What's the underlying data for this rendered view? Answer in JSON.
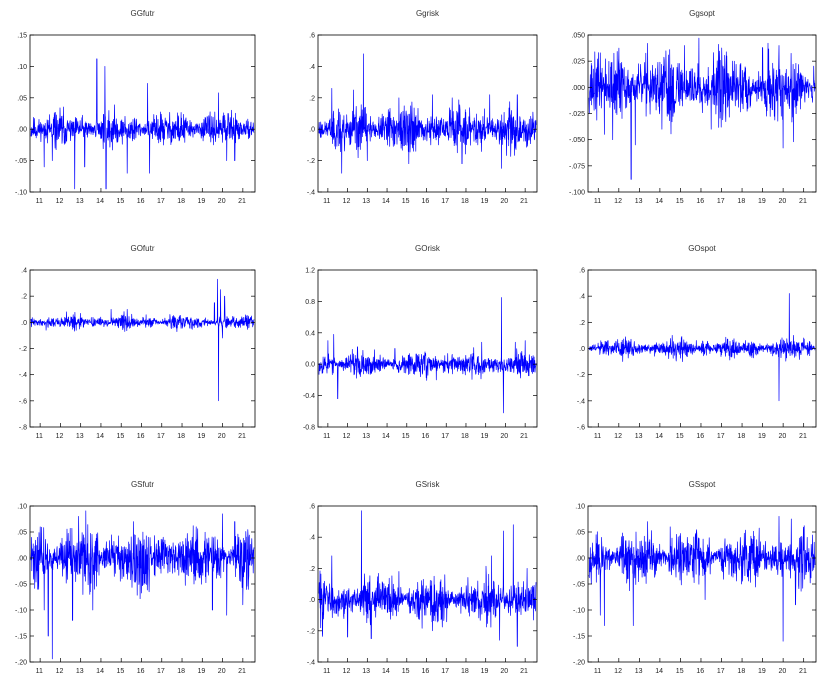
{
  "figure": {
    "line_color": "#0000ff",
    "x_tick_labels": [
      "11",
      "12",
      "13",
      "14",
      "15",
      "16",
      "17",
      "18",
      "19",
      "20",
      "21"
    ]
  },
  "chart_data": [
    {
      "type": "line",
      "title": "GGfutr",
      "xlabel": "",
      "ylabel": "",
      "xlim": [
        2010.5,
        2021.6
      ],
      "ylim": [
        -0.1,
        0.15
      ],
      "yticks": [
        -0.1,
        -0.05,
        0.0,
        0.05,
        0.1,
        0.15
      ],
      "ytick_labels": [
        "-.10",
        "-.05",
        ".00",
        ".05",
        ".10",
        ".15"
      ],
      "base_amplitude": 0.013,
      "seed": 11,
      "spikes": [
        [
          2011.2,
          -0.06
        ],
        [
          2011.6,
          -0.05
        ],
        [
          2012.7,
          -0.095
        ],
        [
          2013.2,
          -0.06
        ],
        [
          2013.8,
          0.112
        ],
        [
          2014.2,
          0.1
        ],
        [
          2014.25,
          -0.097
        ],
        [
          2015.3,
          -0.07
        ],
        [
          2016.3,
          0.073
        ],
        [
          2016.4,
          -0.07
        ],
        [
          2019.8,
          0.058
        ],
        [
          2020.2,
          -0.05
        ],
        [
          2020.6,
          -0.05
        ]
      ]
    },
    {
      "type": "line",
      "title": "Ggrisk",
      "xlabel": "",
      "ylabel": "",
      "xlim": [
        2010.5,
        2021.6
      ],
      "ylim": [
        -0.4,
        0.6
      ],
      "yticks": [
        -0.4,
        -0.2,
        0.0,
        0.2,
        0.4,
        0.6
      ],
      "ytick_labels": [
        "-.4",
        "-.2",
        ".0",
        ".2",
        ".4",
        ".6"
      ],
      "base_amplitude": 0.07,
      "seed": 23,
      "spikes": [
        [
          2011.2,
          0.26
        ],
        [
          2011.7,
          -0.28
        ],
        [
          2012.3,
          0.25
        ],
        [
          2012.8,
          0.48
        ],
        [
          2013.0,
          -0.2
        ],
        [
          2014.6,
          0.2
        ],
        [
          2015.1,
          -0.22
        ],
        [
          2016.3,
          0.22
        ],
        [
          2017.3,
          0.2
        ],
        [
          2017.8,
          -0.22
        ],
        [
          2019.2,
          0.22
        ],
        [
          2019.8,
          -0.25
        ],
        [
          2020.6,
          0.22
        ]
      ]
    },
    {
      "type": "line",
      "title": "Ggsopt",
      "xlabel": "",
      "ylabel": "",
      "xlim": [
        2010.5,
        2021.6
      ],
      "ylim": [
        -0.1,
        0.05
      ],
      "yticks": [
        -0.1,
        -0.075,
        -0.05,
        -0.025,
        0.0,
        0.025,
        0.05
      ],
      "ytick_labels": [
        "-.100",
        "-.075",
        "-.050",
        "-.025",
        ".000",
        ".025",
        ".050"
      ],
      "base_amplitude": 0.016,
      "seed": 37,
      "spikes": [
        [
          2011.1,
          0.033
        ],
        [
          2011.3,
          -0.045
        ],
        [
          2011.7,
          -0.05
        ],
        [
          2012.6,
          -0.088
        ],
        [
          2012.8,
          -0.055
        ],
        [
          2013.4,
          0.042
        ],
        [
          2014.1,
          -0.04
        ],
        [
          2015.2,
          0.04
        ],
        [
          2015.9,
          0.047
        ],
        [
          2016.5,
          -0.04
        ],
        [
          2019.0,
          0.038
        ],
        [
          2019.8,
          0.04
        ],
        [
          2020.0,
          -0.058
        ],
        [
          2020.5,
          -0.052
        ]
      ]
    },
    {
      "type": "line",
      "title": "GOfutr",
      "xlabel": "",
      "ylabel": "",
      "xlim": [
        2010.5,
        2021.6
      ],
      "ylim": [
        -0.8,
        0.4
      ],
      "yticks": [
        -0.8,
        -0.6,
        -0.4,
        -0.2,
        0.0,
        0.2,
        0.4
      ],
      "ytick_labels": [
        "-.8",
        "-.6",
        "-.4",
        "-.2",
        ".0",
        ".2",
        ".4"
      ],
      "base_amplitude": 0.025,
      "seed": 41,
      "spikes": [
        [
          2011.3,
          -0.06
        ],
        [
          2012.3,
          0.08
        ],
        [
          2014.5,
          0.1
        ],
        [
          2015.3,
          0.1
        ],
        [
          2017.4,
          0.06
        ],
        [
          2019.6,
          0.15
        ],
        [
          2019.75,
          0.33
        ],
        [
          2019.8,
          -0.6
        ],
        [
          2019.9,
          0.25
        ],
        [
          2020.0,
          -0.12
        ],
        [
          2020.1,
          0.2
        ]
      ]
    },
    {
      "type": "line",
      "title": "GOrisk",
      "xlabel": "",
      "ylabel": "",
      "xlim": [
        2010.5,
        2021.6
      ],
      "ylim": [
        -0.8,
        1.2
      ],
      "yticks": [
        -0.8,
        -0.4,
        0.0,
        0.4,
        0.8,
        1.2
      ],
      "ytick_labels": [
        "-0.8",
        "-0.4",
        "0.0",
        "0.4",
        "0.8",
        "1.2"
      ],
      "base_amplitude": 0.08,
      "seed": 53,
      "spikes": [
        [
          2011.0,
          0.3
        ],
        [
          2011.3,
          0.38
        ],
        [
          2011.5,
          -0.44
        ],
        [
          2012.5,
          0.22
        ],
        [
          2014.4,
          0.2
        ],
        [
          2016.5,
          -0.2
        ],
        [
          2018.8,
          0.28
        ],
        [
          2019.8,
          0.85
        ],
        [
          2019.9,
          -0.62
        ],
        [
          2020.5,
          0.28
        ],
        [
          2021.0,
          0.3
        ]
      ]
    },
    {
      "type": "line",
      "title": "GOspot",
      "xlabel": "",
      "ylabel": "",
      "xlim": [
        2010.5,
        2021.6
      ],
      "ylim": [
        -0.6,
        0.6
      ],
      "yticks": [
        -0.6,
        -0.4,
        -0.2,
        0.0,
        0.2,
        0.4,
        0.6
      ],
      "ytick_labels": [
        "-.6",
        "-.4",
        "-.2",
        ".0",
        ".2",
        ".4",
        ".6"
      ],
      "base_amplitude": 0.035,
      "seed": 61,
      "spikes": [
        [
          2011.4,
          0.05
        ],
        [
          2014.6,
          0.1
        ],
        [
          2015.1,
          -0.1
        ],
        [
          2017.3,
          0.07
        ],
        [
          2019.8,
          -0.4
        ],
        [
          2020.3,
          0.42
        ],
        [
          2020.5,
          0.1
        ],
        [
          2021.0,
          0.08
        ]
      ]
    },
    {
      "type": "line",
      "title": "GSfutr",
      "xlabel": "",
      "ylabel": "",
      "xlim": [
        2010.5,
        2021.6
      ],
      "ylim": [
        -0.2,
        0.1
      ],
      "yticks": [
        -0.2,
        -0.15,
        -0.1,
        -0.05,
        0.0,
        0.05,
        0.1
      ],
      "ytick_labels": [
        "-.20",
        "-.15",
        "-.10",
        "-.05",
        ".00",
        ".05",
        ".10"
      ],
      "base_amplitude": 0.028,
      "seed": 71,
      "spikes": [
        [
          2011.0,
          0.06
        ],
        [
          2011.2,
          -0.1
        ],
        [
          2011.4,
          -0.15
        ],
        [
          2011.6,
          -0.195
        ],
        [
          2012.6,
          -0.12
        ],
        [
          2012.9,
          0.08
        ],
        [
          2013.6,
          -0.1
        ],
        [
          2015.6,
          0.07
        ],
        [
          2018.7,
          0.06
        ],
        [
          2019.5,
          -0.1
        ],
        [
          2020.0,
          0.085
        ],
        [
          2020.2,
          -0.11
        ],
        [
          2020.6,
          0.07
        ],
        [
          2021.0,
          -0.09
        ]
      ]
    },
    {
      "type": "line",
      "title": "GSrisk",
      "xlabel": "",
      "ylabel": "",
      "xlim": [
        2010.5,
        2021.6
      ],
      "ylim": [
        -0.4,
        0.6
      ],
      "yticks": [
        -0.4,
        -0.2,
        0.0,
        0.2,
        0.4,
        0.6
      ],
      "ytick_labels": [
        "-.4",
        "-.2",
        ".0",
        ".2",
        ".4",
        ".6"
      ],
      "base_amplitude": 0.07,
      "seed": 83,
      "spikes": [
        [
          2011.2,
          0.28
        ],
        [
          2012.0,
          -0.24
        ],
        [
          2012.7,
          0.57
        ],
        [
          2013.2,
          -0.25
        ],
        [
          2014.6,
          0.18
        ],
        [
          2016.3,
          -0.2
        ],
        [
          2019.3,
          0.28
        ],
        [
          2019.7,
          -0.26
        ],
        [
          2019.9,
          0.44
        ],
        [
          2020.4,
          0.48
        ],
        [
          2020.6,
          -0.3
        ],
        [
          2021.1,
          0.2
        ]
      ]
    },
    {
      "type": "line",
      "title": "GSspot",
      "xlabel": "",
      "ylabel": "",
      "xlim": [
        2010.5,
        2021.6
      ],
      "ylim": [
        -0.2,
        0.1
      ],
      "yticks": [
        -0.2,
        -0.15,
        -0.1,
        -0.05,
        0.0,
        0.05,
        0.1
      ],
      "ytick_labels": [
        "-.20",
        "-.15",
        "-.10",
        "-.05",
        ".00",
        ".05",
        ".10"
      ],
      "base_amplitude": 0.024,
      "seed": 97,
      "spikes": [
        [
          2011.1,
          -0.11
        ],
        [
          2011.3,
          -0.13
        ],
        [
          2012.7,
          -0.13
        ],
        [
          2013.4,
          0.07
        ],
        [
          2014.5,
          0.06
        ],
        [
          2016.2,
          -0.08
        ],
        [
          2019.8,
          0.08
        ],
        [
          2020.0,
          -0.16
        ],
        [
          2020.4,
          0.075
        ],
        [
          2020.6,
          -0.09
        ]
      ]
    }
  ]
}
